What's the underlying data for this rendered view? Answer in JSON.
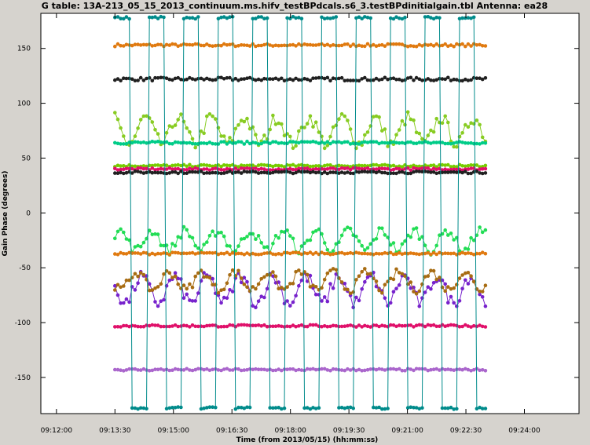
{
  "chart_data": {
    "type": "scatter",
    "title": "G table: 13A-213_05_15_2013_continuum.ms.hifv_testBPdcals.s6_3.testBPdinitialgain.tbl    Antenna: ea28",
    "xlabel": "Time (from 2013/05/15) (hh:mm:ss)",
    "ylabel": "Gain Phase (degrees)",
    "xlim": [
      "09:11:36",
      "09:25:24"
    ],
    "ylim": [
      -183,
      182
    ],
    "x_ticks": [
      "09:12:00",
      "09:13:30",
      "09:15:00",
      "09:16:30",
      "09:18:00",
      "09:19:30",
      "09:21:00",
      "09:22:30",
      "09:24:00"
    ],
    "y_ticks": [
      -150,
      -100,
      -50,
      0,
      50,
      100,
      150
    ],
    "grid": false,
    "legend": "none",
    "x_span": [
      "09:13:30",
      "09:23:00"
    ],
    "series": [
      {
        "color": "#e07a10",
        "style": "steady",
        "level": 153,
        "noise": 1.2
      },
      {
        "color": "#202020",
        "style": "steady",
        "level": 122,
        "noise": 1.5
      },
      {
        "color": "#88cc22",
        "style": "wander",
        "level": 75,
        "noise": 12
      },
      {
        "color": "#00cc88",
        "style": "steady",
        "level": 64,
        "noise": 1.2
      },
      {
        "color": "#77cc00",
        "style": "steady",
        "level": 43,
        "noise": 1.0
      },
      {
        "color": "#e0106a",
        "style": "steady",
        "level": 40,
        "noise": 1.0
      },
      {
        "color": "#202020",
        "style": "steady",
        "level": 37,
        "noise": 1.0
      },
      {
        "color": "#22dd55",
        "style": "wander",
        "level": -25,
        "noise": 9
      },
      {
        "color": "#e07a10",
        "style": "steady",
        "level": -37,
        "noise": 1.0
      },
      {
        "color": "#7722cc",
        "style": "wander",
        "level": -70,
        "noise": 12
      },
      {
        "color": "#a86c12",
        "style": "wander",
        "level": -62,
        "noise": 8
      },
      {
        "color": "#e0106a",
        "style": "steady",
        "level": -103,
        "noise": 1.0
      },
      {
        "color": "#aa66cc",
        "style": "steady",
        "level": -143,
        "noise": 1.0
      },
      {
        "color": "#008b8b",
        "style": "wrap",
        "level": 180,
        "noise": 1.0
      }
    ]
  }
}
